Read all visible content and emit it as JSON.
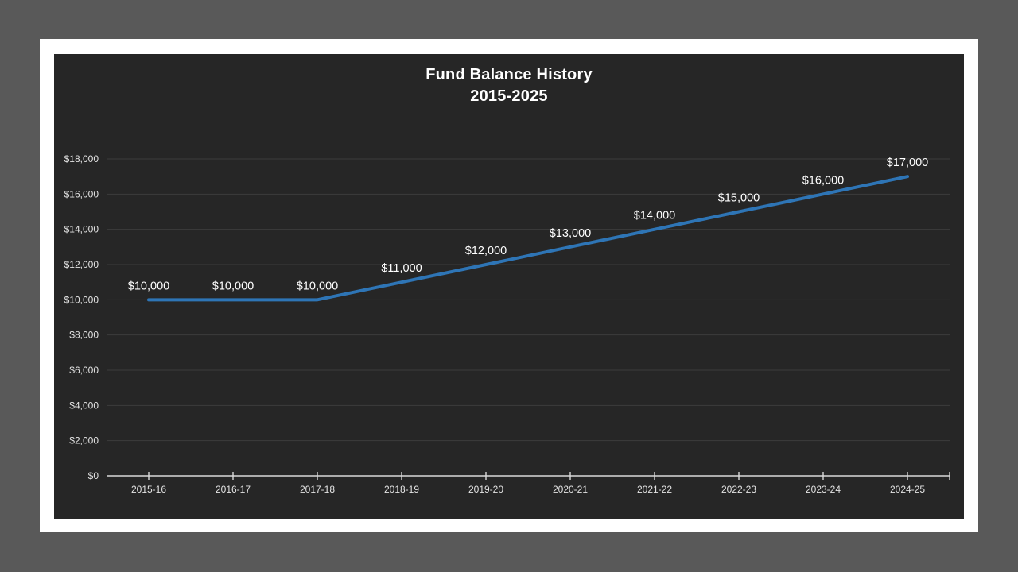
{
  "window": {
    "outer_background": "#595959",
    "slide_background": "#FFFFFF"
  },
  "chart_data": {
    "type": "line",
    "title": "Fund Balance History",
    "subtitle": "2015-2025",
    "categories": [
      "2015-16",
      "2016-17",
      "2017-18",
      "2018-19",
      "2019-20",
      "2020-21",
      "2021-22",
      "2022-23",
      "2023-24",
      "2024-25"
    ],
    "values": [
      10000,
      10000,
      10000,
      11000,
      12000,
      13000,
      14000,
      15000,
      16000,
      17000
    ],
    "data_labels": [
      "$10,000",
      "$10,000",
      "$10,000",
      "$11,000",
      "$12,000",
      "$13,000",
      "$14,000",
      "$15,000",
      "$16,000",
      "$17,000"
    ],
    "ytick_labels": [
      "$0",
      "$2,000",
      "$4,000",
      "$6,000",
      "$8,000",
      "$10,000",
      "$12,000",
      "$14,000",
      "$16,000",
      "$18,000"
    ],
    "ytick_values": [
      0,
      2000,
      4000,
      6000,
      8000,
      10000,
      12000,
      14000,
      16000,
      18000
    ],
    "ylim": [
      0,
      18000
    ],
    "xlabel": "",
    "ylabel": "",
    "grid": true,
    "legend": "none",
    "data_label_position": "above",
    "colors": {
      "line": "#2E75B6",
      "chart_background": "#262626",
      "axis_line": "#D9D9D9",
      "gridline": "#3C3C3C",
      "axis_text": "#E3E3E3",
      "label_text": "#FFFFFF",
      "title_text": "#FFFFFF"
    }
  }
}
